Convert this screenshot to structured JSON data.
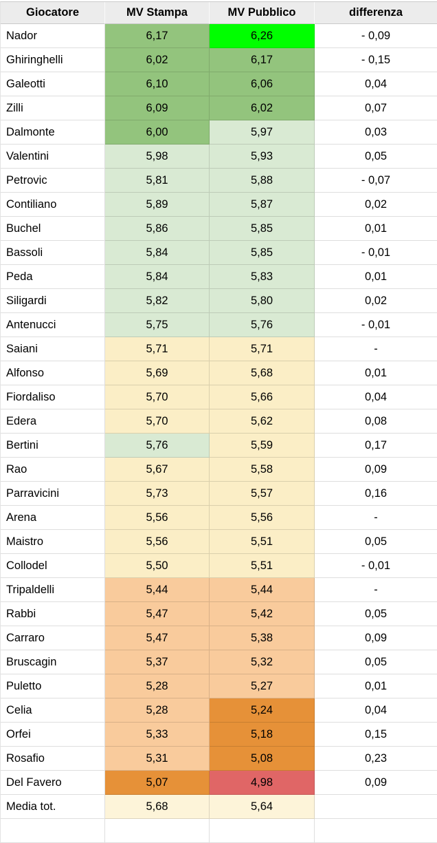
{
  "palette": {
    "header_bg": "#ececec",
    "bright_green": "#00ff00",
    "green": "#93c47d",
    "light_green": "#d9ead3",
    "yellow": "#fbeec6",
    "light_orange": "#f9cb9c",
    "orange": "#e69138",
    "red": "#e06666",
    "cream": "#fdf4d9",
    "white": "#ffffff"
  },
  "table": {
    "columns": [
      "Giocatore",
      "MV Stampa",
      "MV Pubblico",
      "differenza"
    ],
    "rows": [
      {
        "name": "Nador",
        "stampa": "6,17",
        "stampa_fill": "green",
        "pubblico": "6,26",
        "pubblico_fill": "bright_green",
        "diff": "- 0,09"
      },
      {
        "name": "Ghiringhelli",
        "stampa": "6,02",
        "stampa_fill": "green",
        "pubblico": "6,17",
        "pubblico_fill": "green",
        "diff": "- 0,15"
      },
      {
        "name": "Galeotti",
        "stampa": "6,10",
        "stampa_fill": "green",
        "pubblico": "6,06",
        "pubblico_fill": "green",
        "diff": "0,04"
      },
      {
        "name": "Zilli",
        "stampa": "6,09",
        "stampa_fill": "green",
        "pubblico": "6,02",
        "pubblico_fill": "green",
        "diff": "0,07"
      },
      {
        "name": "Dalmonte",
        "stampa": "6,00",
        "stampa_fill": "green",
        "pubblico": "5,97",
        "pubblico_fill": "light_green",
        "diff": "0,03"
      },
      {
        "name": "Valentini",
        "stampa": "5,98",
        "stampa_fill": "light_green",
        "pubblico": "5,93",
        "pubblico_fill": "light_green",
        "diff": "0,05"
      },
      {
        "name": "Petrovic",
        "stampa": "5,81",
        "stampa_fill": "light_green",
        "pubblico": "5,88",
        "pubblico_fill": "light_green",
        "diff": "- 0,07"
      },
      {
        "name": "Contiliano",
        "stampa": "5,89",
        "stampa_fill": "light_green",
        "pubblico": "5,87",
        "pubblico_fill": "light_green",
        "diff": "0,02"
      },
      {
        "name": "Buchel",
        "stampa": "5,86",
        "stampa_fill": "light_green",
        "pubblico": "5,85",
        "pubblico_fill": "light_green",
        "diff": "0,01"
      },
      {
        "name": "Bassoli",
        "stampa": "5,84",
        "stampa_fill": "light_green",
        "pubblico": "5,85",
        "pubblico_fill": "light_green",
        "diff": "- 0,01"
      },
      {
        "name": "Peda",
        "stampa": "5,84",
        "stampa_fill": "light_green",
        "pubblico": "5,83",
        "pubblico_fill": "light_green",
        "diff": "0,01"
      },
      {
        "name": "Siligardi",
        "stampa": "5,82",
        "stampa_fill": "light_green",
        "pubblico": "5,80",
        "pubblico_fill": "light_green",
        "diff": "0,02"
      },
      {
        "name": "Antenucci",
        "stampa": "5,75",
        "stampa_fill": "light_green",
        "pubblico": "5,76",
        "pubblico_fill": "light_green",
        "diff": "- 0,01"
      },
      {
        "name": "Saiani",
        "stampa": "5,71",
        "stampa_fill": "yellow",
        "pubblico": "5,71",
        "pubblico_fill": "yellow",
        "diff": "-"
      },
      {
        "name": "Alfonso",
        "stampa": "5,69",
        "stampa_fill": "yellow",
        "pubblico": "5,68",
        "pubblico_fill": "yellow",
        "diff": "0,01"
      },
      {
        "name": "Fiordaliso",
        "stampa": "5,70",
        "stampa_fill": "yellow",
        "pubblico": "5,66",
        "pubblico_fill": "yellow",
        "diff": "0,04"
      },
      {
        "name": "Edera",
        "stampa": "5,70",
        "stampa_fill": "yellow",
        "pubblico": "5,62",
        "pubblico_fill": "yellow",
        "diff": "0,08"
      },
      {
        "name": "Bertini",
        "stampa": "5,76",
        "stampa_fill": "light_green",
        "pubblico": "5,59",
        "pubblico_fill": "yellow",
        "diff": "0,17"
      },
      {
        "name": "Rao",
        "stampa": "5,67",
        "stampa_fill": "yellow",
        "pubblico": "5,58",
        "pubblico_fill": "yellow",
        "diff": "0,09"
      },
      {
        "name": "Parravicini",
        "stampa": "5,73",
        "stampa_fill": "yellow",
        "pubblico": "5,57",
        "pubblico_fill": "yellow",
        "diff": "0,16"
      },
      {
        "name": "Arena",
        "stampa": "5,56",
        "stampa_fill": "yellow",
        "pubblico": "5,56",
        "pubblico_fill": "yellow",
        "diff": "-"
      },
      {
        "name": "Maistro",
        "stampa": "5,56",
        "stampa_fill": "yellow",
        "pubblico": "5,51",
        "pubblico_fill": "yellow",
        "diff": "0,05"
      },
      {
        "name": "Collodel",
        "stampa": "5,50",
        "stampa_fill": "yellow",
        "pubblico": "5,51",
        "pubblico_fill": "yellow",
        "diff": "- 0,01"
      },
      {
        "name": "Tripaldelli",
        "stampa": "5,44",
        "stampa_fill": "light_orange",
        "pubblico": "5,44",
        "pubblico_fill": "light_orange",
        "diff": "-"
      },
      {
        "name": "Rabbi",
        "stampa": "5,47",
        "stampa_fill": "light_orange",
        "pubblico": "5,42",
        "pubblico_fill": "light_orange",
        "diff": "0,05"
      },
      {
        "name": "Carraro",
        "stampa": "5,47",
        "stampa_fill": "light_orange",
        "pubblico": "5,38",
        "pubblico_fill": "light_orange",
        "diff": "0,09"
      },
      {
        "name": "Bruscagin",
        "stampa": "5,37",
        "stampa_fill": "light_orange",
        "pubblico": "5,32",
        "pubblico_fill": "light_orange",
        "diff": "0,05"
      },
      {
        "name": "Puletto",
        "stampa": "5,28",
        "stampa_fill": "light_orange",
        "pubblico": "5,27",
        "pubblico_fill": "light_orange",
        "diff": "0,01"
      },
      {
        "name": "Celia",
        "stampa": "5,28",
        "stampa_fill": "light_orange",
        "pubblico": "5,24",
        "pubblico_fill": "orange",
        "diff": "0,04"
      },
      {
        "name": "Orfei",
        "stampa": "5,33",
        "stampa_fill": "light_orange",
        "pubblico": "5,18",
        "pubblico_fill": "orange",
        "diff": "0,15"
      },
      {
        "name": "Rosafio",
        "stampa": "5,31",
        "stampa_fill": "light_orange",
        "pubblico": "5,08",
        "pubblico_fill": "orange",
        "diff": "0,23"
      },
      {
        "name": "Del Favero",
        "stampa": "5,07",
        "stampa_fill": "orange",
        "pubblico": "4,98",
        "pubblico_fill": "red",
        "diff": "0,09"
      },
      {
        "name": "Media tot.",
        "stampa": "5,68",
        "stampa_fill": "cream",
        "pubblico": "5,64",
        "pubblico_fill": "cream",
        "diff": ""
      }
    ]
  }
}
